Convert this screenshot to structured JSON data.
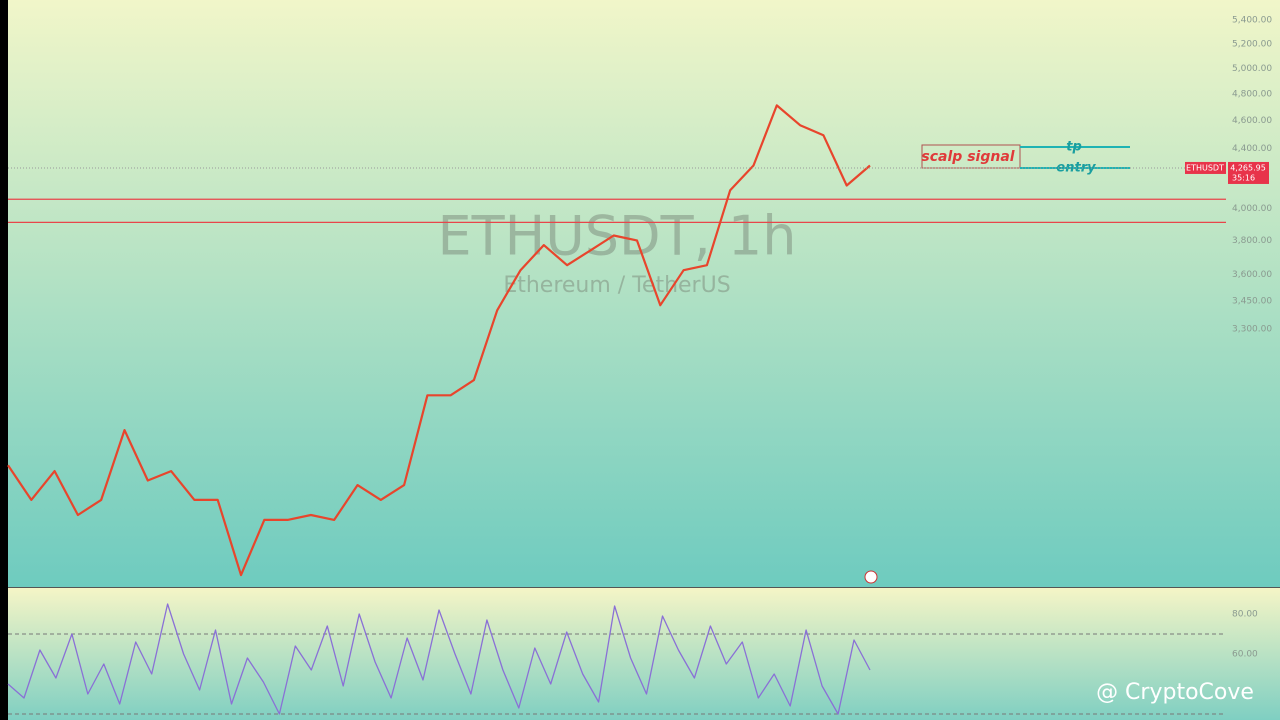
{
  "chart_data": [
    {
      "type": "line",
      "title": "ETHUSDT, 1h",
      "subtitle": "Ethereum / TetherUS",
      "log_scale": true,
      "ylim": [
        2186,
        5577
      ],
      "yticks": [
        {
          "value": 5400,
          "label": "5,400.00"
        },
        {
          "value": 5200,
          "label": "5,200.00"
        },
        {
          "value": 5000,
          "label": "5,000.00"
        },
        {
          "value": 4800,
          "label": "4,800.00"
        },
        {
          "value": 4600,
          "label": "4,600.00"
        },
        {
          "value": 4400,
          "label": "4,400.00"
        },
        {
          "value": 4000,
          "label": "4,000.00"
        },
        {
          "value": 3800,
          "label": "3,800.00"
        },
        {
          "value": 3600,
          "label": "3,600.00"
        },
        {
          "value": 3450,
          "label": "3,450.00"
        },
        {
          "value": 3300,
          "label": "3,300.00"
        }
      ],
      "grid": false,
      "series": [
        {
          "name": "ETHUSDT",
          "color": "#e8452c",
          "values": [
            2655,
            2512,
            2630,
            2452,
            2512,
            2808,
            2591,
            2630,
            2512,
            2512,
            2228,
            2433,
            2433,
            2452,
            2433,
            2572,
            2512,
            2572,
            2968,
            2968,
            3041,
            3399,
            3624,
            3772,
            3653,
            3740,
            3830,
            3800,
            3427,
            3624,
            3653,
            4117,
            4283,
            4714,
            4567,
            4495,
            4148,
            4283
          ]
        }
      ],
      "levels": [
        {
          "value": 4058,
          "color": "#e8454a"
        },
        {
          "value": 3911,
          "color": "#e8454a"
        }
      ],
      "last_price": {
        "value": 4265.95,
        "label": "4,265.95"
      },
      "price_tag": {
        "symbol": "ETHUSDT",
        "countdown": "35:16"
      },
      "annotations": {
        "signal": "scalp signal",
        "tp": "tp",
        "entry": "entry"
      },
      "watermark": "@ CryptoCove"
    },
    {
      "type": "line",
      "ylim": [
        27,
        93
      ],
      "yticks": [
        {
          "value": 80,
          "label": "80.00"
        },
        {
          "value": 60,
          "label": "60.00"
        }
      ],
      "bands": [
        70,
        30
      ],
      "series": [
        {
          "name": "RSI",
          "color": "#8a70d6",
          "values": [
            45,
            38,
            62,
            48,
            70,
            40,
            55,
            35,
            66,
            50,
            85,
            60,
            42,
            72,
            35,
            58,
            46,
            30,
            64,
            52,
            74,
            44,
            80,
            56,
            38,
            68,
            47,
            82,
            60,
            40,
            77,
            52,
            33,
            63,
            45,
            71,
            50,
            36,
            84,
            58,
            40,
            79,
            62,
            48,
            74,
            55,
            66,
            38,
            50,
            34,
            72,
            44,
            30,
            67,
            52
          ]
        }
      ]
    }
  ]
}
